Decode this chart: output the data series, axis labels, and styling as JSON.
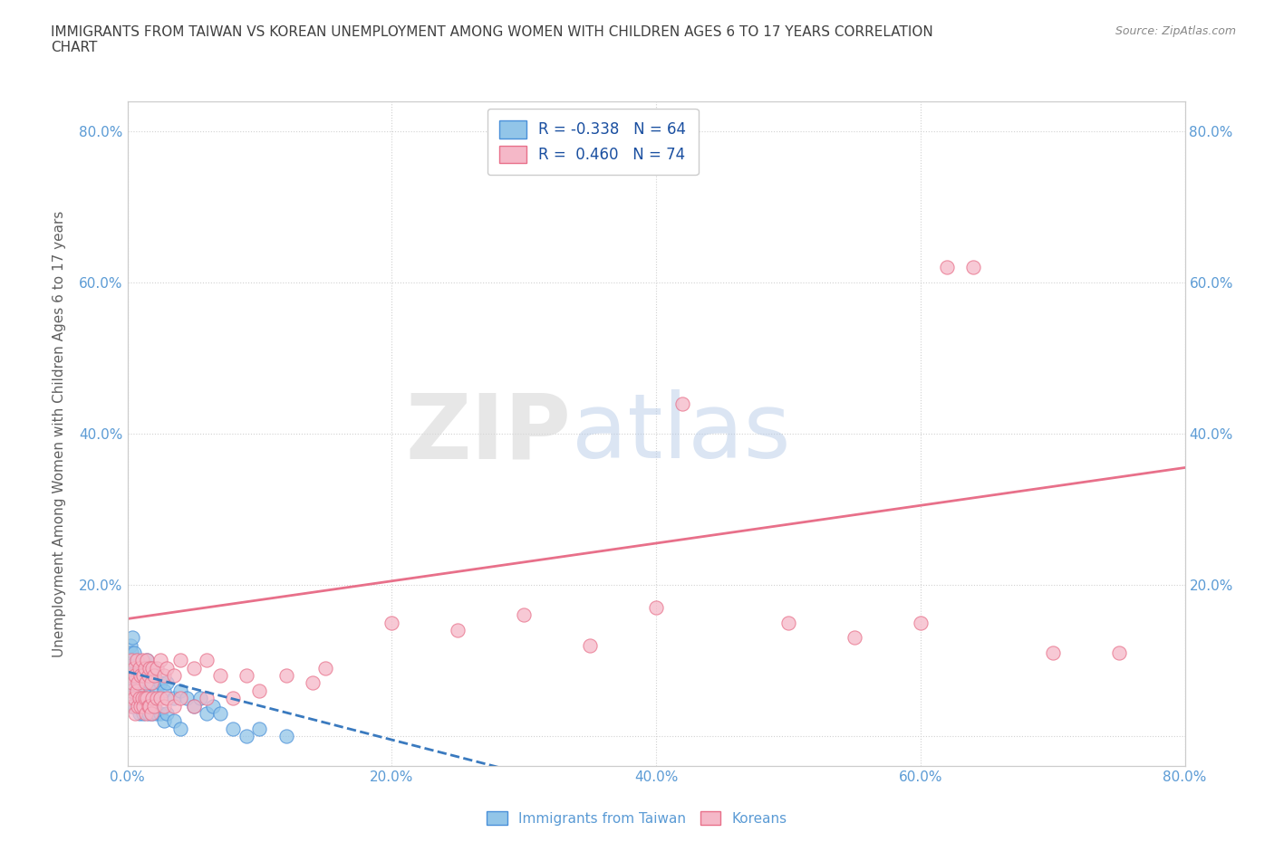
{
  "title": "IMMIGRANTS FROM TAIWAN VS KOREAN UNEMPLOYMENT AMONG WOMEN WITH CHILDREN AGES 6 TO 17 YEARS CORRELATION\nCHART",
  "source": "Source: ZipAtlas.com",
  "ylabel": "Unemployment Among Women with Children Ages 6 to 17 years",
  "xlim": [
    0.0,
    0.8
  ],
  "ylim": [
    -0.04,
    0.84
  ],
  "x_ticks": [
    0.0,
    0.2,
    0.4,
    0.6,
    0.8
  ],
  "y_ticks": [
    0.0,
    0.2,
    0.4,
    0.6,
    0.8
  ],
  "watermark_zip": "ZIP",
  "watermark_atlas": "atlas",
  "taiwan_color": "#92c5e8",
  "taiwan_edge": "#4a90d9",
  "korean_color": "#f5b8c8",
  "korean_edge": "#e8708a",
  "taiwan_trend_color": "#3a7abf",
  "korean_trend_color": "#e8708a",
  "taiwan_R": -0.338,
  "taiwan_N": 64,
  "korean_R": 0.46,
  "korean_N": 74,
  "taiwan_trend": [
    0.0,
    0.3,
    0.085,
    -0.05
  ],
  "korean_trend": [
    0.0,
    0.8,
    0.155,
    0.355
  ],
  "taiwan_points": [
    [
      0.001,
      0.06
    ],
    [
      0.002,
      0.09
    ],
    [
      0.003,
      0.07
    ],
    [
      0.003,
      0.04
    ],
    [
      0.004,
      0.1
    ],
    [
      0.004,
      0.06
    ],
    [
      0.005,
      0.08
    ],
    [
      0.005,
      0.05
    ],
    [
      0.006,
      0.09
    ],
    [
      0.006,
      0.04
    ],
    [
      0.007,
      0.1
    ],
    [
      0.007,
      0.06
    ],
    [
      0.008,
      0.08
    ],
    [
      0.008,
      0.05
    ],
    [
      0.009,
      0.07
    ],
    [
      0.009,
      0.03
    ],
    [
      0.01,
      0.09
    ],
    [
      0.01,
      0.05
    ],
    [
      0.011,
      0.08
    ],
    [
      0.011,
      0.04
    ],
    [
      0.012,
      0.07
    ],
    [
      0.012,
      0.03
    ],
    [
      0.013,
      0.09
    ],
    [
      0.013,
      0.05
    ],
    [
      0.014,
      0.08
    ],
    [
      0.014,
      0.04
    ],
    [
      0.015,
      0.1
    ],
    [
      0.015,
      0.06
    ],
    [
      0.016,
      0.08
    ],
    [
      0.016,
      0.03
    ],
    [
      0.017,
      0.07
    ],
    [
      0.017,
      0.04
    ],
    [
      0.018,
      0.09
    ],
    [
      0.018,
      0.05
    ],
    [
      0.019,
      0.07
    ],
    [
      0.019,
      0.03
    ],
    [
      0.02,
      0.08
    ],
    [
      0.02,
      0.04
    ],
    [
      0.022,
      0.06
    ],
    [
      0.022,
      0.03
    ],
    [
      0.025,
      0.07
    ],
    [
      0.025,
      0.03
    ],
    [
      0.028,
      0.06
    ],
    [
      0.028,
      0.02
    ],
    [
      0.03,
      0.07
    ],
    [
      0.03,
      0.03
    ],
    [
      0.035,
      0.05
    ],
    [
      0.035,
      0.02
    ],
    [
      0.04,
      0.06
    ],
    [
      0.04,
      0.01
    ],
    [
      0.045,
      0.05
    ],
    [
      0.05,
      0.04
    ],
    [
      0.055,
      0.05
    ],
    [
      0.06,
      0.03
    ],
    [
      0.065,
      0.04
    ],
    [
      0.07,
      0.03
    ],
    [
      0.002,
      0.12
    ],
    [
      0.003,
      0.11
    ],
    [
      0.004,
      0.13
    ],
    [
      0.005,
      0.11
    ],
    [
      0.08,
      0.01
    ],
    [
      0.09,
      0.0
    ],
    [
      0.1,
      0.01
    ],
    [
      0.12,
      0.0
    ]
  ],
  "korean_points": [
    [
      0.001,
      0.05
    ],
    [
      0.002,
      0.08
    ],
    [
      0.003,
      0.06
    ],
    [
      0.003,
      0.1
    ],
    [
      0.004,
      0.07
    ],
    [
      0.004,
      0.04
    ],
    [
      0.005,
      0.09
    ],
    [
      0.005,
      0.05
    ],
    [
      0.006,
      0.08
    ],
    [
      0.006,
      0.03
    ],
    [
      0.007,
      0.1
    ],
    [
      0.007,
      0.06
    ],
    [
      0.008,
      0.07
    ],
    [
      0.008,
      0.04
    ],
    [
      0.009,
      0.09
    ],
    [
      0.009,
      0.05
    ],
    [
      0.01,
      0.08
    ],
    [
      0.01,
      0.04
    ],
    [
      0.011,
      0.1
    ],
    [
      0.011,
      0.05
    ],
    [
      0.012,
      0.08
    ],
    [
      0.012,
      0.04
    ],
    [
      0.013,
      0.09
    ],
    [
      0.013,
      0.05
    ],
    [
      0.014,
      0.07
    ],
    [
      0.014,
      0.03
    ],
    [
      0.015,
      0.1
    ],
    [
      0.015,
      0.05
    ],
    [
      0.016,
      0.08
    ],
    [
      0.016,
      0.04
    ],
    [
      0.017,
      0.09
    ],
    [
      0.017,
      0.04
    ],
    [
      0.018,
      0.07
    ],
    [
      0.018,
      0.03
    ],
    [
      0.019,
      0.09
    ],
    [
      0.019,
      0.05
    ],
    [
      0.02,
      0.08
    ],
    [
      0.02,
      0.04
    ],
    [
      0.022,
      0.09
    ],
    [
      0.022,
      0.05
    ],
    [
      0.025,
      0.1
    ],
    [
      0.025,
      0.05
    ],
    [
      0.028,
      0.08
    ],
    [
      0.028,
      0.04
    ],
    [
      0.03,
      0.09
    ],
    [
      0.03,
      0.05
    ],
    [
      0.035,
      0.08
    ],
    [
      0.035,
      0.04
    ],
    [
      0.04,
      0.1
    ],
    [
      0.04,
      0.05
    ],
    [
      0.05,
      0.09
    ],
    [
      0.05,
      0.04
    ],
    [
      0.06,
      0.1
    ],
    [
      0.06,
      0.05
    ],
    [
      0.07,
      0.08
    ],
    [
      0.08,
      0.05
    ],
    [
      0.09,
      0.08
    ],
    [
      0.1,
      0.06
    ],
    [
      0.12,
      0.08
    ],
    [
      0.14,
      0.07
    ],
    [
      0.15,
      0.09
    ],
    [
      0.2,
      0.15
    ],
    [
      0.25,
      0.14
    ],
    [
      0.3,
      0.16
    ],
    [
      0.35,
      0.12
    ],
    [
      0.4,
      0.17
    ],
    [
      0.42,
      0.44
    ],
    [
      0.5,
      0.15
    ],
    [
      0.55,
      0.13
    ],
    [
      0.6,
      0.15
    ],
    [
      0.62,
      0.62
    ],
    [
      0.64,
      0.62
    ],
    [
      0.7,
      0.11
    ],
    [
      0.75,
      0.11
    ]
  ],
  "background_color": "#ffffff",
  "grid_color": "#cccccc",
  "title_color": "#404040",
  "axis_label_color": "#606060",
  "tick_label_color": "#5b9bd5"
}
